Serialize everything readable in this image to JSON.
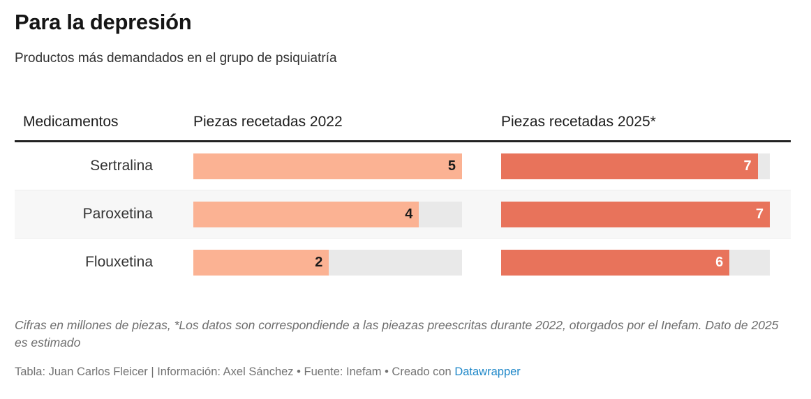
{
  "header": {
    "title": "Para la depresión",
    "subtitle": "Productos más demandados en el grupo de psiquiatría"
  },
  "chart_data": {
    "type": "bar",
    "subtype": "table-with-bar-columns",
    "title": "Para la depresión",
    "subtitle": "Productos más demandados en el grupo de psiquiatría",
    "unit": "millones de piezas",
    "columns": {
      "medicamentos": "Medicamentos",
      "y2022": "Piezas recetadas 2022",
      "y2025": "Piezas recetadas 2025*"
    },
    "bar_scale": {
      "min": 0,
      "normalized_per_column": true
    },
    "colors": {
      "bar_2022": "#fbb293",
      "bar_2025": "#e8735b",
      "track": "#e9e9e9",
      "stripe_row": "#f7f7f7",
      "header_rule": "#222222",
      "link_blue": "#1e87c8"
    },
    "rows": [
      {
        "label": "Sertralina",
        "v2022": "5",
        "v2025": "7",
        "fill2022": 100,
        "fill2025": 95.5
      },
      {
        "label": "Paroxetina",
        "v2022": "4",
        "v2025": "7",
        "fill2022": 84,
        "fill2025": 100
      },
      {
        "label": "Flouxetina",
        "v2022": "2",
        "v2025": "6",
        "fill2022": 50.5,
        "fill2025": 85
      }
    ]
  },
  "footer": {
    "notes": "Cifras en millones de piezas, *Los datos son correspondiende a las pieazas preescritas durante 2022, otorgados por el Inefam. Dato de 2025 es estimado",
    "attribution_prefix": "Tabla: Juan Carlos Fleicer | Información: Axel Sánchez • Fuente: Inefam • Creado con ",
    "attribution_link": "Datawrapper"
  }
}
